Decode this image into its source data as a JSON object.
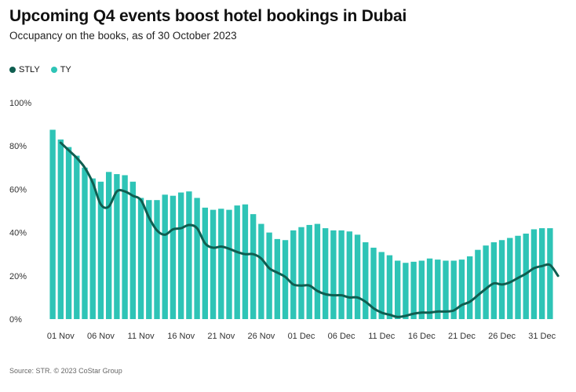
{
  "title": "Upcoming Q4 events boost hotel bookings in Dubai",
  "subtitle": "Occupancy on the books, as of 30 October 2023",
  "source": "Source: STR. © 2023 CoStar Group",
  "colors": {
    "stly": "#0f5e50",
    "ty": "#2ec4b6"
  },
  "legend": [
    {
      "key": "stly",
      "label": "STLY"
    },
    {
      "key": "ty",
      "label": "TY"
    }
  ],
  "chart_data": {
    "type": "bar",
    "title": "Upcoming Q4 events boost hotel bookings in Dubai",
    "subtitle": "Occupancy on the books, as of 30 October 2023",
    "ylim": [
      0,
      100
    ],
    "y_ticks": [
      "0%",
      "20%",
      "40%",
      "60%",
      "80%",
      "100%"
    ],
    "y_tick_values": [
      0,
      20,
      40,
      60,
      80,
      100
    ],
    "x_tick_labels": [
      "01 Nov",
      "06 Nov",
      "11 Nov",
      "16 Nov",
      "21 Nov",
      "26 Nov",
      "01 Dec",
      "06 Dec",
      "11 Dec",
      "16 Dec",
      "21 Dec",
      "26 Dec",
      "31 Dec"
    ],
    "x_tick_index": [
      1,
      6,
      11,
      16,
      21,
      26,
      31,
      36,
      41,
      46,
      51,
      56,
      61
    ],
    "x_start": "31 Oct",
    "x_end": "31 Dec",
    "legend_position": "top-left",
    "grid": false,
    "series": [
      {
        "name": "TY",
        "type": "bar",
        "values": [
          87.5,
          83,
          79.5,
          75.5,
          70,
          65,
          63.5,
          68,
          67,
          66.5,
          63.5,
          56,
          55,
          55,
          57.5,
          57,
          58.5,
          59,
          56,
          51.5,
          50.5,
          51,
          50.5,
          52.5,
          53,
          48.5,
          44,
          40,
          37,
          36.5,
          41,
          42.5,
          43.5,
          44,
          42,
          41,
          41,
          40.5,
          39,
          35.5,
          33,
          31,
          29.5,
          27,
          26,
          26.5,
          27,
          28,
          27.5,
          27,
          27,
          27.5,
          29,
          32,
          34,
          35.5,
          36.5,
          37.5,
          38.5,
          39.5,
          41.5,
          42,
          42
        ]
      },
      {
        "name": "STLY",
        "type": "line",
        "values": [
          81.5,
          78,
          74.5,
          70,
          63,
          53,
          52,
          59,
          59,
          57,
          55,
          47,
          41,
          39,
          41.5,
          42,
          43.5,
          42,
          35,
          33,
          33.5,
          32.5,
          31,
          30,
          30,
          28,
          23.5,
          21.5,
          19.5,
          16,
          15.5,
          15.5,
          13,
          11.5,
          11,
          11,
          10,
          10,
          8,
          5,
          3,
          2,
          1,
          1.5,
          2.5,
          3,
          3,
          3.5,
          3.5,
          4,
          6.5,
          8,
          11,
          14,
          16.5,
          16,
          17,
          19,
          21,
          23.5,
          24.5,
          25,
          20
        ]
      }
    ]
  }
}
